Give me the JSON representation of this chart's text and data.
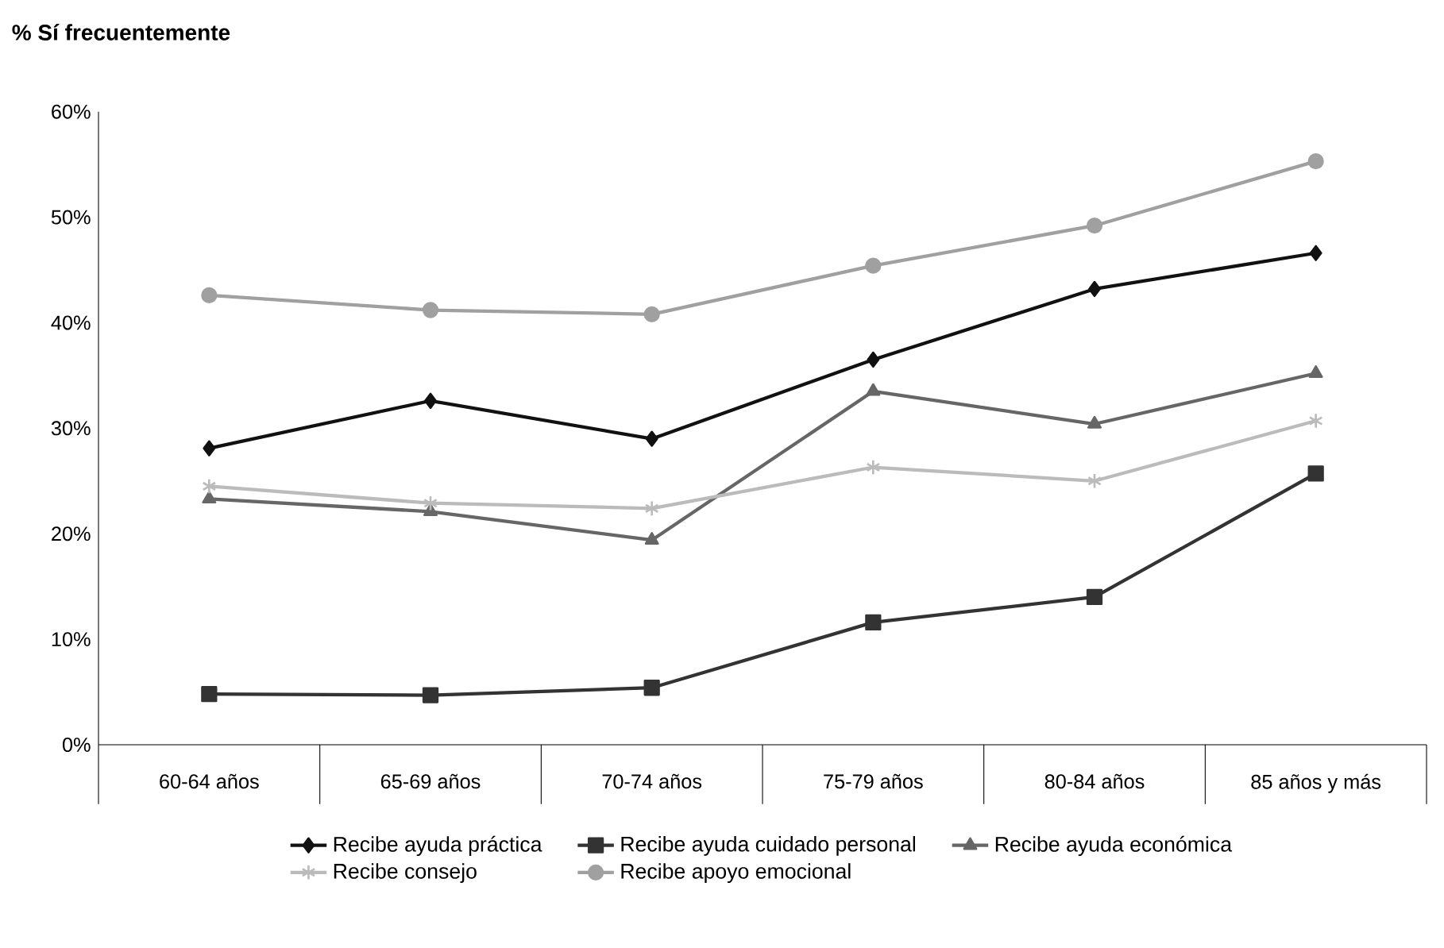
{
  "chart_data": {
    "type": "line",
    "title": "% Sí frecuentemente",
    "categories": [
      "60-64 años",
      "65-69 años",
      "70-74 años",
      "75-79 años",
      "80-84 años",
      "85 años y más"
    ],
    "series": [
      {
        "name": "Recibe ayuda práctica",
        "color": "#111111",
        "marker": "diamond",
        "values": [
          28.1,
          32.6,
          29.0,
          36.5,
          43.2,
          46.6
        ]
      },
      {
        "name": "Recibe ayuda cuidado personal",
        "color": "#333333",
        "marker": "square",
        "values": [
          4.8,
          4.7,
          5.4,
          11.6,
          14.0,
          25.7
        ]
      },
      {
        "name": "Recibe ayuda económica",
        "color": "#666666",
        "marker": "triangle",
        "values": [
          23.3,
          22.1,
          19.4,
          33.5,
          30.4,
          35.2
        ]
      },
      {
        "name": "Recibe consejo",
        "color": "#bbbbbb",
        "marker": "cross",
        "values": [
          24.5,
          22.9,
          22.4,
          26.3,
          25.0,
          30.7
        ]
      },
      {
        "name": "Recibe apoyo emocional",
        "color": "#a0a0a0",
        "marker": "circle",
        "values": [
          42.6,
          41.2,
          40.8,
          45.4,
          49.2,
          55.3
        ]
      }
    ],
    "ylim": [
      0,
      60
    ],
    "yticks": [
      {
        "value": 0,
        "label": "0%"
      },
      {
        "value": 10,
        "label": "10%"
      },
      {
        "value": 20,
        "label": "20%"
      },
      {
        "value": 30,
        "label": "30%"
      },
      {
        "value": 40,
        "label": "40%"
      },
      {
        "value": 50,
        "label": "50%"
      },
      {
        "value": 60,
        "label": "60%"
      }
    ],
    "grid": false,
    "legend": "bottom",
    "line_style": "solid"
  }
}
